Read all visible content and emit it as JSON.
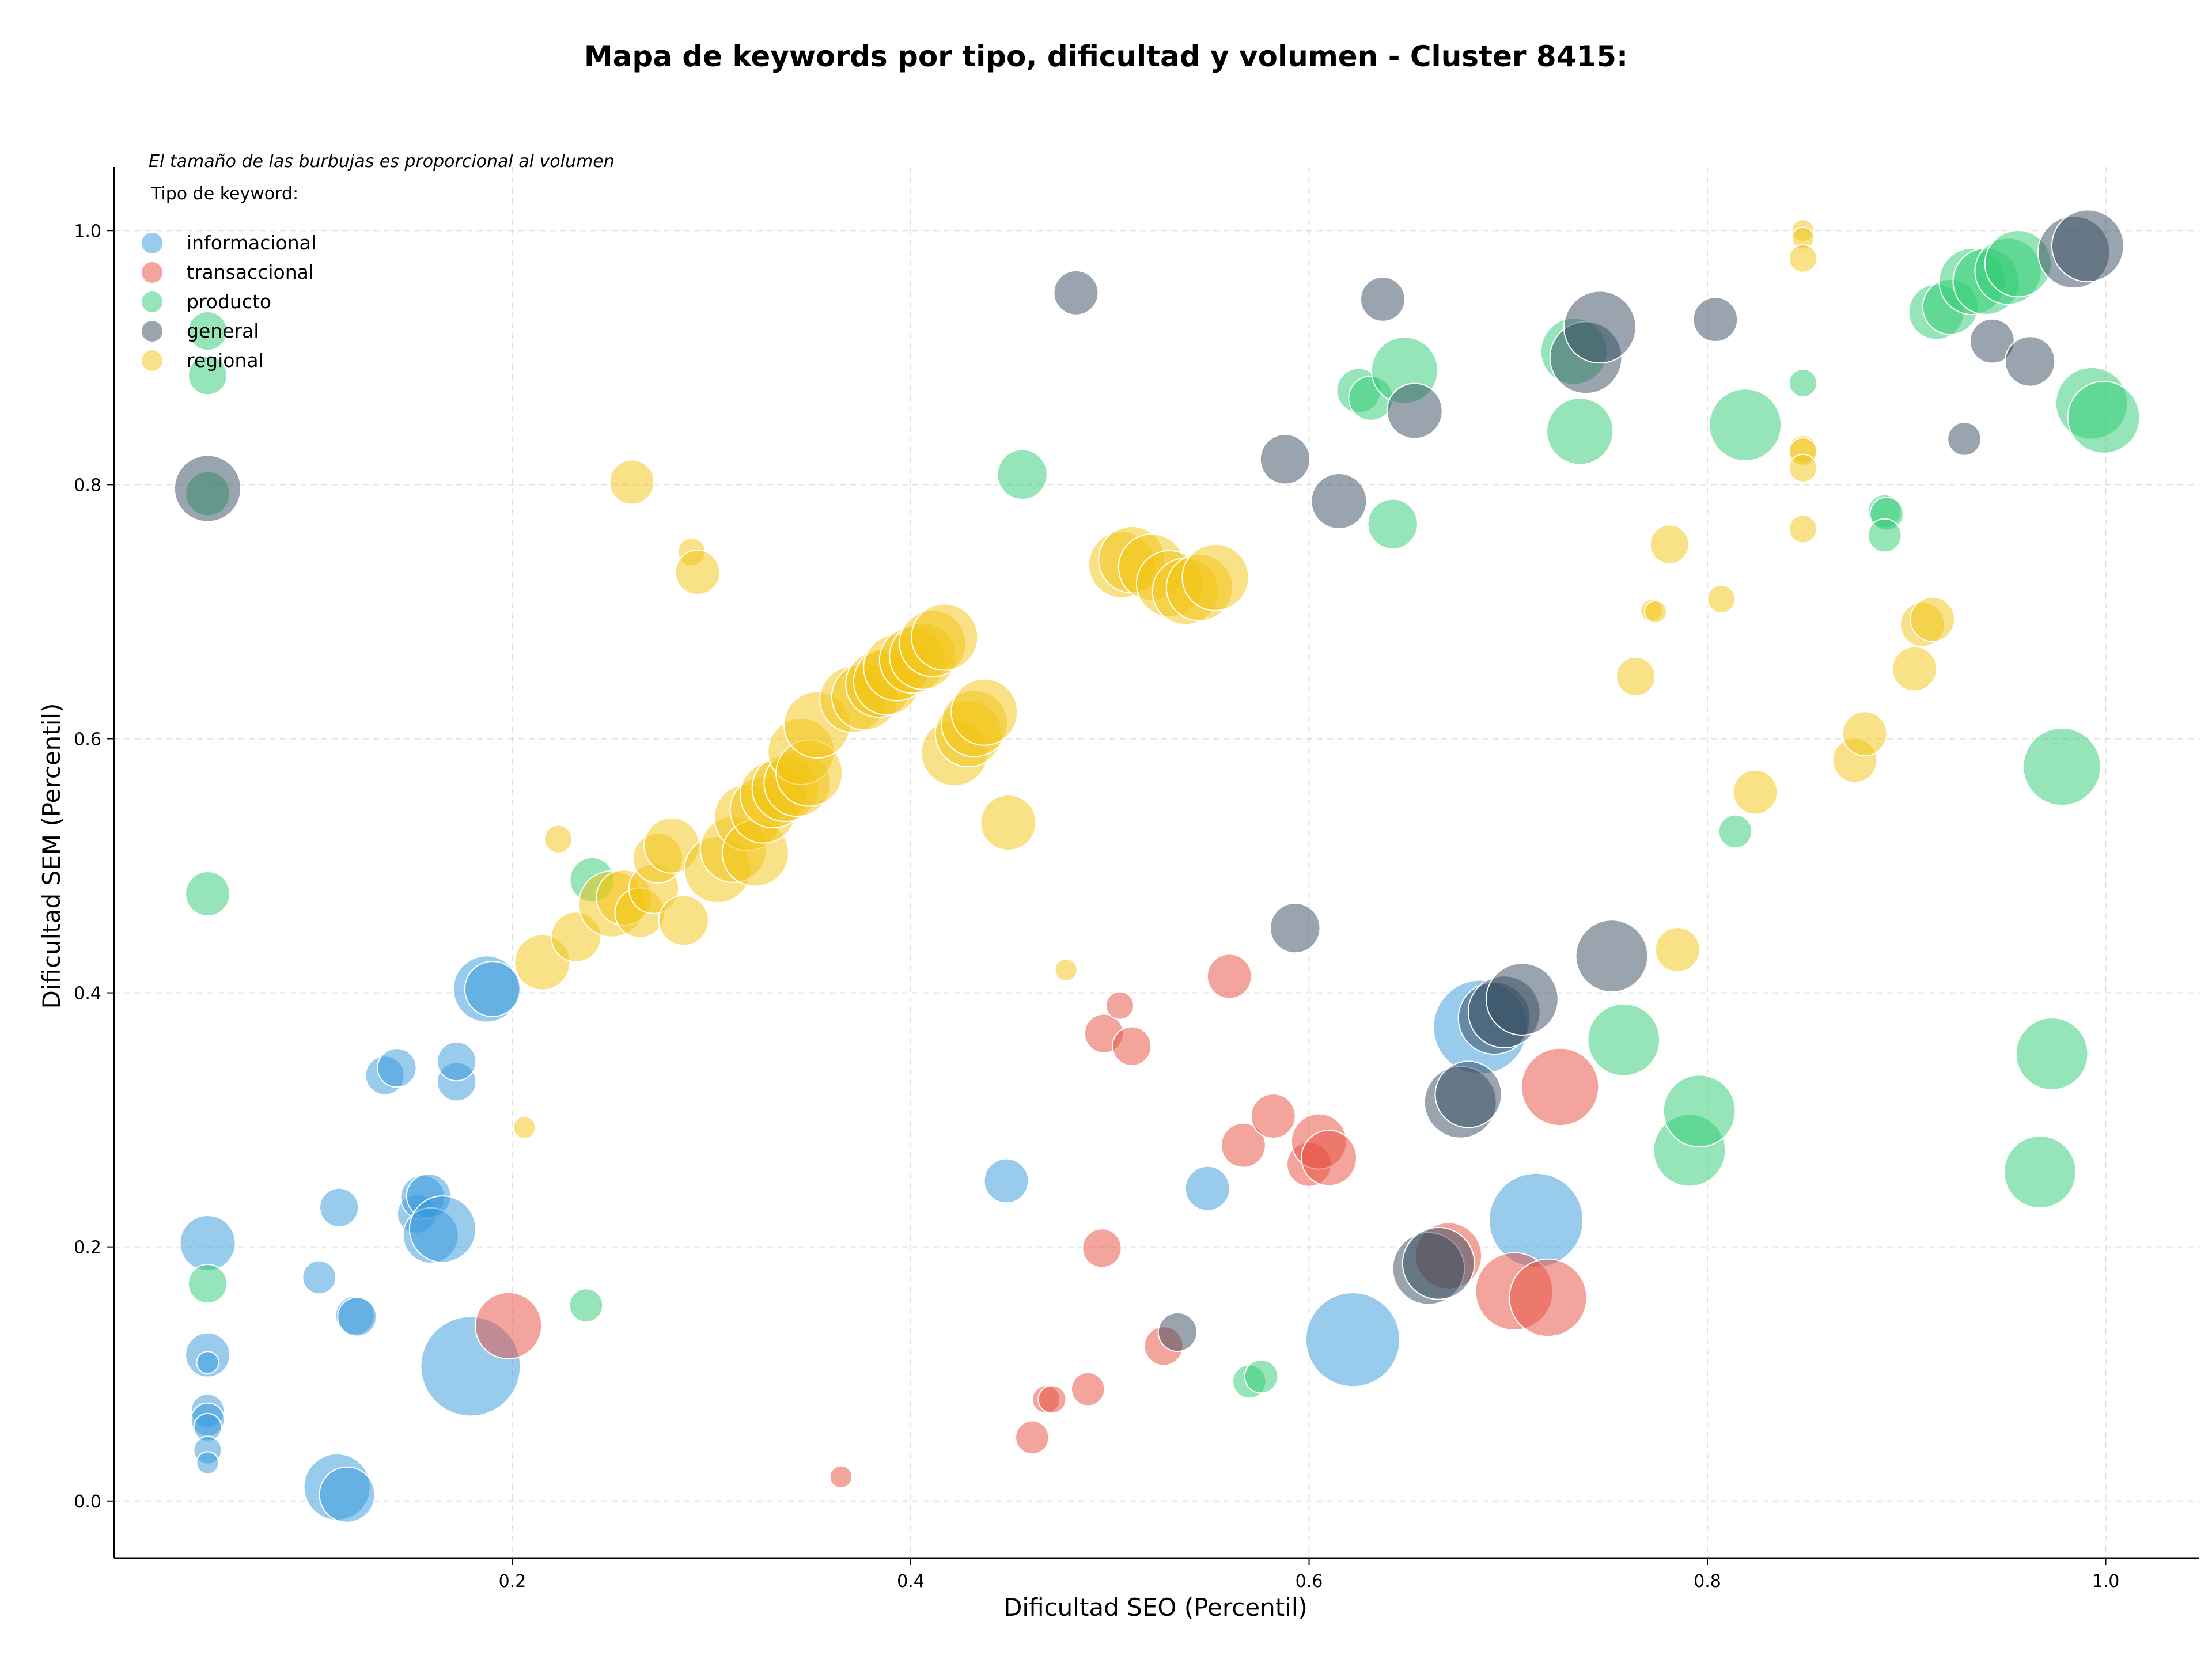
{
  "chart_data": {
    "type": "scatter",
    "title": "Mapa de keywords por tipo, dificultad y volumen - Cluster 8415:",
    "subtitle": "El tamaño de las burbujas es proporcional al volumen",
    "xlabel": "Dificultad SEO (Percentil)",
    "ylabel": "Dificultad SEM (Percentil)",
    "xlim": [
      0.0,
      1.047
    ],
    "ylim": [
      -0.045,
      1.05
    ],
    "xticks": [
      0.2,
      0.4,
      0.6,
      0.8,
      1.0
    ],
    "xtick_labels": [
      "0.2",
      "0.4",
      "0.6",
      "0.8",
      "1.0"
    ],
    "yticks": [
      0.0,
      0.2,
      0.4,
      0.6,
      0.8,
      1.0
    ],
    "ytick_labels": [
      "0.0",
      "0.2",
      "0.4",
      "0.6",
      "0.8",
      "1.0"
    ],
    "grid": true,
    "legend_title": "Tipo de keyword:",
    "legend_position": "top-left",
    "series": [
      {
        "name": "informacional",
        "color": "#3498db",
        "points": [
          [
            0.047,
            0.203,
            1.0
          ],
          [
            0.047,
            0.115,
            0.8
          ],
          [
            0.047,
            0.109,
            0.4
          ],
          [
            0.047,
            0.071,
            0.6
          ],
          [
            0.047,
            0.064,
            0.6
          ],
          [
            0.047,
            0.058,
            0.5
          ],
          [
            0.047,
            0.04,
            0.5
          ],
          [
            0.047,
            0.03,
            0.4
          ],
          [
            0.103,
            0.176,
            0.6
          ],
          [
            0.112,
            0.011,
            1.2
          ],
          [
            0.117,
            0.005,
            1.0
          ],
          [
            0.113,
            0.231,
            0.7
          ],
          [
            0.121,
            0.146,
            0.7
          ],
          [
            0.122,
            0.145,
            0.7
          ],
          [
            0.136,
            0.335,
            0.7
          ],
          [
            0.142,
            0.341,
            0.7
          ],
          [
            0.152,
            0.226,
            0.7
          ],
          [
            0.155,
            0.239,
            0.8
          ],
          [
            0.158,
            0.24,
            0.8
          ],
          [
            0.159,
            0.209,
            1.0
          ],
          [
            0.165,
            0.214,
            1.2
          ],
          [
            0.172,
            0.33,
            0.7
          ],
          [
            0.172,
            0.346,
            0.7
          ],
          [
            0.179,
            0.106,
            1.8
          ],
          [
            0.187,
            0.403,
            1.2
          ],
          [
            0.19,
            0.403,
            1.0
          ],
          [
            0.448,
            0.252,
            0.8
          ],
          [
            0.549,
            0.246,
            0.8
          ],
          [
            0.622,
            0.127,
            1.7
          ],
          [
            0.686,
            0.373,
            1.7
          ],
          [
            0.714,
            0.221,
            1.7
          ]
        ]
      },
      {
        "name": "transaccional",
        "color": "#e74c3c",
        "points": [
          [
            0.198,
            0.138,
            1.2
          ],
          [
            0.365,
            0.019,
            0.4
          ],
          [
            0.461,
            0.05,
            0.6
          ],
          [
            0.468,
            0.08,
            0.5
          ],
          [
            0.471,
            0.08,
            0.5
          ],
          [
            0.489,
            0.088,
            0.6
          ],
          [
            0.496,
            0.199,
            0.7
          ],
          [
            0.497,
            0.368,
            0.7
          ],
          [
            0.505,
            0.39,
            0.5
          ],
          [
            0.511,
            0.358,
            0.7
          ],
          [
            0.527,
            0.122,
            0.7
          ],
          [
            0.56,
            0.413,
            0.8
          ],
          [
            0.567,
            0.28,
            0.8
          ],
          [
            0.582,
            0.303,
            0.8
          ],
          [
            0.6,
            0.265,
            0.8
          ],
          [
            0.605,
            0.283,
            1.0
          ],
          [
            0.61,
            0.27,
            1.0
          ],
          [
            0.67,
            0.193,
            1.2
          ],
          [
            0.703,
            0.165,
            1.4
          ],
          [
            0.72,
            0.16,
            1.4
          ],
          [
            0.726,
            0.326,
            1.4
          ]
        ]
      },
      {
        "name": "producto",
        "color": "#2ecc71",
        "points": [
          [
            0.047,
            0.921,
            0.7
          ],
          [
            0.047,
            0.886,
            0.7
          ],
          [
            0.047,
            0.793,
            0.8
          ],
          [
            0.047,
            0.478,
            0.8
          ],
          [
            0.047,
            0.171,
            0.7
          ],
          [
            0.237,
            0.154,
            0.6
          ],
          [
            0.24,
            0.489,
            0.8
          ],
          [
            0.456,
            0.808,
            0.9
          ],
          [
            0.57,
            0.094,
            0.6
          ],
          [
            0.576,
            0.098,
            0.6
          ],
          [
            0.625,
            0.874,
            0.8
          ],
          [
            0.631,
            0.868,
            0.8
          ],
          [
            0.642,
            0.769,
            0.9
          ],
          [
            0.648,
            0.89,
            1.2
          ],
          [
            0.733,
            0.905,
            1.2
          ],
          [
            0.736,
            0.842,
            1.2
          ],
          [
            0.758,
            0.363,
            1.3
          ],
          [
            0.791,
            0.276,
            1.3
          ],
          [
            0.796,
            0.307,
            1.3
          ],
          [
            0.819,
            0.847,
            1.3
          ],
          [
            0.814,
            0.527,
            0.6
          ],
          [
            0.848,
            0.88,
            0.5
          ],
          [
            0.889,
            0.779,
            0.6
          ],
          [
            0.89,
            0.777,
            0.6
          ],
          [
            0.889,
            0.76,
            0.6
          ],
          [
            0.915,
            0.936,
            1.0
          ],
          [
            0.922,
            0.94,
            1.0
          ],
          [
            0.933,
            0.96,
            1.2
          ],
          [
            0.94,
            0.96,
            1.2
          ],
          [
            0.951,
            0.968,
            1.2
          ],
          [
            0.956,
            0.974,
            1.2
          ],
          [
            0.967,
            0.259,
            1.3
          ],
          [
            0.973,
            0.352,
            1.3
          ],
          [
            0.978,
            0.578,
            1.4
          ],
          [
            0.993,
            0.864,
            1.3
          ],
          [
            0.999,
            0.853,
            1.3
          ]
        ]
      },
      {
        "name": "general",
        "color": "#34495e",
        "points": [
          [
            0.047,
            0.797,
            1.2
          ],
          [
            0.483,
            0.951,
            0.8
          ],
          [
            0.534,
            0.133,
            0.7
          ],
          [
            0.588,
            0.82,
            0.9
          ],
          [
            0.593,
            0.451,
            0.9
          ],
          [
            0.615,
            0.787,
            1.0
          ],
          [
            0.637,
            0.946,
            0.8
          ],
          [
            0.653,
            0.858,
            1.0
          ],
          [
            0.66,
            0.183,
            1.3
          ],
          [
            0.665,
            0.187,
            1.3
          ],
          [
            0.676,
            0.314,
            1.3
          ],
          [
            0.68,
            0.32,
            1.2
          ],
          [
            0.693,
            0.38,
            1.3
          ],
          [
            0.698,
            0.385,
            1.3
          ],
          [
            0.707,
            0.395,
            1.3
          ],
          [
            0.739,
            0.9,
            1.3
          ],
          [
            0.746,
            0.924,
            1.3
          ],
          [
            0.752,
            0.429,
            1.3
          ],
          [
            0.804,
            0.93,
            0.8
          ],
          [
            0.929,
            0.836,
            0.6
          ],
          [
            0.943,
            0.913,
            0.8
          ],
          [
            0.962,
            0.897,
            0.9
          ],
          [
            0.984,
            0.983,
            1.3
          ],
          [
            0.991,
            0.988,
            1.3
          ]
        ]
      },
      {
        "name": "regional",
        "color": "#f1c40f",
        "points": [
          [
            0.206,
            0.294,
            0.4
          ],
          [
            0.215,
            0.424,
            1.0
          ],
          [
            0.223,
            0.521,
            0.5
          ],
          [
            0.232,
            0.444,
            0.9
          ],
          [
            0.25,
            0.47,
            1.2
          ],
          [
            0.256,
            0.475,
            1.0
          ],
          [
            0.26,
            0.802,
            0.8
          ],
          [
            0.264,
            0.463,
            0.9
          ],
          [
            0.271,
            0.482,
            0.9
          ],
          [
            0.273,
            0.506,
            0.9
          ],
          [
            0.28,
            0.516,
            1.0
          ],
          [
            0.286,
            0.457,
            0.9
          ],
          [
            0.29,
            0.747,
            0.5
          ],
          [
            0.293,
            0.731,
            0.8
          ],
          [
            0.303,
            0.497,
            1.2
          ],
          [
            0.311,
            0.513,
            1.2
          ],
          [
            0.318,
            0.538,
            1.2
          ],
          [
            0.322,
            0.51,
            1.2
          ],
          [
            0.326,
            0.544,
            1.2
          ],
          [
            0.331,
            0.556,
            1.2
          ],
          [
            0.337,
            0.561,
            1.2
          ],
          [
            0.343,
            0.565,
            1.2
          ],
          [
            0.345,
            0.59,
            1.2
          ],
          [
            0.349,
            0.573,
            1.2
          ],
          [
            0.353,
            0.611,
            1.2
          ],
          [
            0.371,
            0.631,
            1.2
          ],
          [
            0.377,
            0.633,
            1.2
          ],
          [
            0.384,
            0.643,
            1.2
          ],
          [
            0.388,
            0.645,
            1.2
          ],
          [
            0.393,
            0.656,
            1.2
          ],
          [
            0.401,
            0.662,
            1.2
          ],
          [
            0.406,
            0.665,
            1.2
          ],
          [
            0.411,
            0.675,
            1.2
          ],
          [
            0.417,
            0.68,
            1.2
          ],
          [
            0.422,
            0.589,
            1.2
          ],
          [
            0.429,
            0.604,
            1.2
          ],
          [
            0.432,
            0.612,
            1.2
          ],
          [
            0.437,
            0.621,
            1.2
          ],
          [
            0.449,
            0.534,
            1.0
          ],
          [
            0.478,
            0.418,
            0.4
          ],
          [
            0.506,
            0.737,
            1.2
          ],
          [
            0.511,
            0.741,
            1.2
          ],
          [
            0.521,
            0.735,
            1.2
          ],
          [
            0.53,
            0.722,
            1.2
          ],
          [
            0.538,
            0.716,
            1.2
          ],
          [
            0.545,
            0.719,
            1.2
          ],
          [
            0.553,
            0.727,
            1.2
          ],
          [
            0.764,
            0.649,
            0.7
          ],
          [
            0.772,
            0.701,
            0.4
          ],
          [
            0.774,
            0.7,
            0.4
          ],
          [
            0.781,
            0.753,
            0.7
          ],
          [
            0.785,
            0.434,
            0.8
          ],
          [
            0.807,
            0.71,
            0.5
          ],
          [
            0.824,
            0.558,
            0.8
          ],
          [
            0.848,
            1.0,
            0.4
          ],
          [
            0.848,
            0.994,
            0.4
          ],
          [
            0.848,
            0.978,
            0.5
          ],
          [
            0.848,
            0.828,
            0.5
          ],
          [
            0.848,
            0.826,
            0.5
          ],
          [
            0.848,
            0.813,
            0.5
          ],
          [
            0.848,
            0.765,
            0.5
          ],
          [
            0.874,
            0.583,
            0.8
          ],
          [
            0.879,
            0.604,
            0.8
          ],
          [
            0.904,
            0.655,
            0.8
          ],
          [
            0.908,
            0.69,
            0.8
          ],
          [
            0.913,
            0.694,
            0.8
          ]
        ]
      }
    ]
  }
}
